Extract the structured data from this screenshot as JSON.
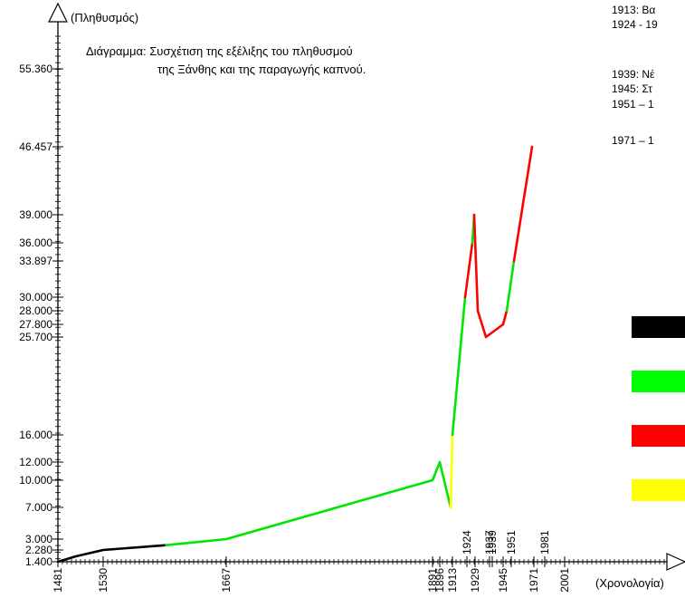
{
  "chart_data": {
    "type": "line",
    "title_lines": [
      "Διάγραμμα: Συσχέτιση της εξέλιξης του πληθυσμού",
      "της Ξάνθης και της παραγωγής καπνού."
    ],
    "ylabel": "(Πληθυσμός)",
    "xlabel": "(Χρονολογία)",
    "x_ticks_bottom": [
      "1481",
      "1530",
      "1667",
      "1891",
      "1896",
      "1913",
      "1929",
      "1945",
      "1971",
      "2001"
    ],
    "x_ticks_upper": [
      "1924",
      "1937",
      "1939",
      "1951",
      "1981"
    ],
    "y_ticks": [
      {
        "label": "55.360",
        "value": 55360
      },
      {
        "label": "46.457",
        "value": 46457
      },
      {
        "label": "39.000",
        "value": 39000
      },
      {
        "label": "36.000",
        "value": 36000
      },
      {
        "label": "33.897",
        "value": 33897
      },
      {
        "label": "30.000",
        "value": 30000
      },
      {
        "label": "28.000",
        "value": 28000
      },
      {
        "label": "27.800",
        "value": 27800
      },
      {
        "label": "25.700",
        "value": 25700
      },
      {
        "label": "16.000",
        "value": 16000
      },
      {
        "label": "12.000",
        "value": 12000
      },
      {
        "label": "10.000",
        "value": 10000
      },
      {
        "label": "7.000",
        "value": 7000
      },
      {
        "label": "3.000",
        "value": 3000
      },
      {
        "label": "2.280",
        "value": 2280
      },
      {
        "label": "1.400",
        "value": 1400
      }
    ],
    "series_colors": {
      "black": "#000000",
      "green": "#00e600",
      "red": "#ff0000",
      "yellow": "#ffff00"
    },
    "segments": [
      {
        "color": "black",
        "points": [
          [
            1481,
            1400
          ],
          [
            1500,
            1800
          ],
          [
            1530,
            2280
          ],
          [
            1600,
            2600
          ]
        ]
      },
      {
        "color": "green",
        "points": [
          [
            1600,
            2600
          ],
          [
            1667,
            3000
          ],
          [
            1891,
            10000
          ],
          [
            1896,
            12000
          ],
          [
            1908,
            7000
          ]
        ]
      },
      {
        "color": "yellow",
        "points": [
          [
            1908,
            7000
          ],
          [
            1913,
            16000
          ]
        ]
      },
      {
        "color": "green",
        "points": [
          [
            1913,
            16000
          ],
          [
            1922,
            30000
          ]
        ]
      },
      {
        "color": "red",
        "points": [
          [
            1922,
            30000
          ],
          [
            1927,
            36000
          ]
        ]
      },
      {
        "color": "green",
        "points": [
          [
            1927,
            36000
          ],
          [
            1928,
            39000
          ]
        ]
      },
      {
        "color": "red",
        "points": [
          [
            1928,
            39000
          ],
          [
            1931,
            28000
          ],
          [
            1935,
            25700
          ],
          [
            1945,
            27800
          ],
          [
            1948,
            28000
          ]
        ]
      },
      {
        "color": "green",
        "points": [
          [
            1948,
            28000
          ],
          [
            1955,
            33897
          ]
        ]
      },
      {
        "color": "red",
        "points": [
          [
            1955,
            33897
          ],
          [
            1968,
            46457
          ]
        ]
      }
    ],
    "annotations": [
      "1913: Βα",
      "1924 - 19",
      "1939: Νέ",
      "1945: Στ",
      "1951 – 1",
      "1971 – 1"
    ],
    "legend_colors": [
      "#000000",
      "#00ff00",
      "#ff0000",
      "#ffff00"
    ]
  }
}
